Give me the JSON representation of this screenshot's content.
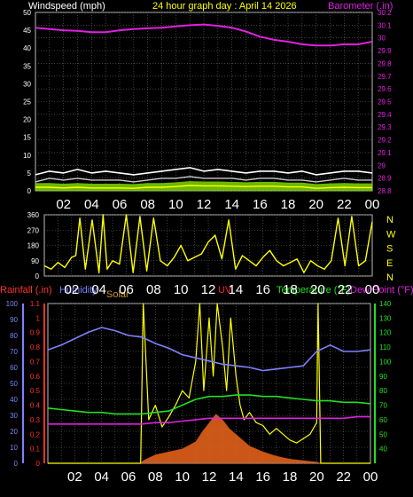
{
  "header": {
    "title": "24 hour graph day : April 14 2026"
  },
  "colors": {
    "background": "#000000",
    "grid": "#6b6b6b",
    "wind_gust": "#ffffff",
    "wind_speed": "#c8c8c8",
    "wind_avg": "#ffff00",
    "wind_fill": "#7fd800",
    "barometer": "#e020e0",
    "direction": "#ffff00",
    "rain": "#ff3030",
    "humidity": "#8080ff",
    "solar": "#c89632",
    "uv": "#ff2020",
    "temperature": "#20e020",
    "dewpoint": "#e020e0",
    "tick_label": "#ffffff"
  },
  "chart_data": [
    {
      "type": "line",
      "title": "24 hour graph day : April 14 2026",
      "xticks": [
        "02",
        "04",
        "06",
        "08",
        "10",
        "12",
        "14",
        "16",
        "18",
        "20",
        "22",
        "00"
      ],
      "xlim": [
        0,
        24
      ],
      "grid": true,
      "left_axis": {
        "label": "Windspeed (mph)",
        "ylim": [
          0,
          50
        ],
        "ticks": [
          "0",
          "5",
          "10",
          "15",
          "20",
          "25",
          "30",
          "35",
          "40",
          "45",
          "50"
        ]
      },
      "right_axis": {
        "label": "Barometer (.in)",
        "ylim": [
          28.8,
          30.2
        ],
        "ticks": [
          "28.8",
          "28.9",
          "29",
          "29.1",
          "29.2",
          "29.3",
          "29.4",
          "29.5",
          "29.6",
          "29.7",
          "29.8",
          "29.9",
          "30",
          "30.1",
          "30.2"
        ]
      },
      "series": [
        {
          "name": "Barometer (.in)",
          "axis": "right",
          "x": [
            0,
            1,
            2,
            3,
            4,
            5,
            6,
            7,
            8,
            9,
            10,
            11,
            12,
            13,
            14,
            15,
            16,
            17,
            18,
            19,
            20,
            21,
            22,
            23,
            24
          ],
          "y": [
            30.08,
            30.07,
            30.06,
            30.055,
            30.045,
            30.045,
            30.06,
            30.07,
            30.075,
            30.08,
            30.09,
            30.1,
            30.105,
            30.095,
            30.08,
            30.05,
            30.01,
            29.985,
            29.97,
            29.95,
            29.94,
            29.94,
            29.95,
            29.95,
            29.97
          ]
        },
        {
          "name": "Wind gust",
          "x": [
            0,
            1,
            2,
            3,
            4,
            5,
            6,
            7,
            8,
            9,
            10,
            11,
            12,
            13,
            14,
            15,
            16,
            17,
            18,
            19,
            20,
            21,
            22,
            23,
            24
          ],
          "y": [
            4.5,
            5.5,
            5,
            6,
            5,
            5.5,
            5,
            4.5,
            5,
            5.5,
            6,
            6.5,
            5.5,
            6,
            5.5,
            5,
            5.5,
            5.5,
            5,
            5.5,
            4.5,
            5,
            5.5,
            5.5,
            5
          ]
        },
        {
          "name": "Wind speed",
          "x": [
            0,
            1,
            2,
            3,
            4,
            5,
            6,
            7,
            8,
            9,
            10,
            11,
            12,
            13,
            14,
            15,
            16,
            17,
            18,
            19,
            20,
            21,
            22,
            23,
            24
          ],
          "y": [
            2.5,
            3.5,
            3,
            3.5,
            3,
            3,
            3,
            2.5,
            3,
            3.5,
            3.5,
            4,
            3.5,
            3.5,
            3.5,
            3,
            3.5,
            3.5,
            3,
            3,
            2.5,
            3,
            3.5,
            3,
            3
          ]
        },
        {
          "name": "Wind average",
          "x": [
            0,
            1,
            2,
            3,
            4,
            5,
            6,
            7,
            8,
            9,
            10,
            11,
            12,
            13,
            14,
            15,
            16,
            17,
            18,
            19,
            20,
            21,
            22,
            23,
            24
          ],
          "y": [
            1,
            1,
            0.8,
            1,
            0.8,
            0.8,
            0.8,
            0.7,
            1,
            1,
            1.2,
            1.5,
            1.4,
            1.4,
            1.3,
            1.2,
            1.3,
            1.3,
            1.1,
            1.1,
            0.7,
            0.9,
            1,
            0.9,
            0.9
          ]
        }
      ]
    },
    {
      "type": "line",
      "xticks": [
        "02",
        "04",
        "06",
        "08",
        "10",
        "12",
        "14",
        "16",
        "18",
        "20",
        "22",
        "00"
      ],
      "xlim": [
        0,
        24
      ],
      "grid": true,
      "left_axis": {
        "ylim": [
          0,
          360
        ],
        "ticks": [
          "0",
          "90",
          "180",
          "270",
          "360"
        ]
      },
      "right_labels": [
        "N",
        "W",
        "S",
        "E",
        "N"
      ],
      "series": [
        {
          "name": "Wind direction",
          "x": [
            0,
            0.5,
            1,
            1.5,
            2,
            2.3,
            2.6,
            3,
            3.5,
            4,
            4.3,
            4.6,
            5,
            5.5,
            6,
            6.5,
            7,
            7.5,
            8,
            8.5,
            9,
            9.5,
            10,
            10.5,
            11,
            11.5,
            12,
            12.5,
            13,
            13.5,
            14,
            14.5,
            15,
            15.5,
            16,
            16.5,
            17,
            17.5,
            18,
            18.5,
            19,
            19.5,
            20,
            20.5,
            21,
            21.5,
            22,
            22.5,
            23,
            23.5,
            24
          ],
          "y": [
            60,
            40,
            80,
            50,
            110,
            120,
            340,
            40,
            330,
            20,
            360,
            40,
            90,
            70,
            360,
            20,
            350,
            30,
            340,
            90,
            60,
            110,
            180,
            90,
            110,
            130,
            200,
            240,
            100,
            330,
            40,
            120,
            90,
            60,
            110,
            150,
            90,
            60,
            80,
            100,
            20,
            90,
            60,
            40,
            90,
            340,
            60,
            350,
            60,
            90,
            320
          ]
        }
      ]
    },
    {
      "type": "line",
      "xticks": [
        "02",
        "04",
        "06",
        "08",
        "10",
        "12",
        "14",
        "16",
        "18",
        "20",
        "22",
        "00"
      ],
      "xlim": [
        0,
        24
      ],
      "grid": true,
      "axes": {
        "rain": {
          "label": "Rainfall (.in)",
          "ylim": [
            0,
            1.1
          ],
          "ticks": [
            "0",
            "0.1",
            "0.2",
            "0.3",
            "0.4",
            "0.5",
            "0.6",
            "0.7",
            "0.8",
            "0.9",
            "1",
            "1.1"
          ]
        },
        "humidity": {
          "label": "Humidity",
          "ylim": [
            0,
            100
          ],
          "ticks": [
            "0",
            "10",
            "20",
            "30",
            "40",
            "50",
            "60",
            "70",
            "80",
            "90",
            "100"
          ]
        },
        "solar": {
          "label": "Solar"
        },
        "uv": {
          "label": "UV"
        },
        "temperature": {
          "label": "Temperature (°F)",
          "ylim": [
            30,
            140
          ],
          "ticks": [
            "40",
            "50",
            "60",
            "70",
            "80",
            "90",
            "100",
            "110",
            "120",
            "130",
            "140"
          ]
        },
        "dewpoint": {
          "label": "Dew Point (°F)"
        }
      },
      "series": [
        {
          "name": "Humidity",
          "axis": "humidity",
          "x": [
            0,
            1,
            2,
            3,
            4,
            5,
            6,
            7,
            8,
            9,
            10,
            11,
            12,
            13,
            14,
            15,
            16,
            17,
            18,
            19,
            20,
            21,
            22,
            23,
            24
          ],
          "y": [
            71,
            74,
            78,
            82,
            85,
            83,
            80,
            79,
            75,
            72,
            68,
            66,
            64,
            62,
            61,
            60,
            58,
            59,
            60,
            61,
            70,
            74,
            70,
            70,
            71
          ]
        },
        {
          "name": "Temperature (°F)",
          "axis": "temperature",
          "x": [
            0,
            1,
            2,
            3,
            4,
            5,
            6,
            7,
            8,
            9,
            10,
            11,
            12,
            13,
            14,
            15,
            16,
            17,
            18,
            19,
            20,
            21,
            22,
            23,
            24
          ],
          "y": [
            68,
            67,
            66,
            65,
            65,
            64,
            64,
            64,
            65,
            66,
            70,
            74,
            76,
            76,
            77,
            77,
            76,
            76,
            75,
            74,
            73,
            73,
            72,
            72,
            71
          ]
        },
        {
          "name": "Dew Point (°F)",
          "axis": "temperature",
          "x": [
            0,
            1,
            2,
            3,
            4,
            5,
            6,
            7,
            8,
            9,
            10,
            11,
            12,
            13,
            14,
            15,
            16,
            17,
            18,
            19,
            20,
            21,
            22,
            23,
            24
          ],
          "y": [
            57,
            57,
            57,
            57,
            57,
            57,
            57,
            57,
            58,
            58,
            59,
            60,
            61,
            61,
            61,
            61,
            61,
            61,
            61,
            61,
            61,
            61,
            61,
            62,
            62
          ]
        },
        {
          "name": "Solar",
          "axis": "rain",
          "x": [
            0,
            6.9,
            7.1,
            8,
            9,
            10,
            11,
            11.5,
            12,
            12.5,
            13,
            13.5,
            14,
            14.5,
            15,
            16,
            17,
            18,
            19,
            20,
            20.3,
            24
          ],
          "y": [
            0,
            0,
            0.02,
            0.06,
            0.08,
            0.1,
            0.15,
            0.22,
            0.28,
            0.34,
            0.3,
            0.24,
            0.2,
            0.16,
            0.12,
            0.08,
            0.05,
            0.03,
            0.02,
            0.01,
            0,
            0
          ]
        },
        {
          "name": "UV",
          "axis": "rain",
          "x": [
            0,
            6.9,
            7.1,
            7.5,
            8,
            8.5,
            9,
            9.5,
            10,
            10.5,
            11,
            11.3,
            11.6,
            12,
            12.3,
            12.6,
            13,
            13.3,
            13.6,
            14,
            14.3,
            14.6,
            15,
            15.5,
            16,
            16.5,
            17,
            17.5,
            18,
            18.5,
            19,
            19.5,
            20,
            20.1,
            20.3,
            24
          ],
          "y": [
            0,
            0,
            1.1,
            0.3,
            0.4,
            0.25,
            0.32,
            0.4,
            0.5,
            0.45,
            0.7,
            1.1,
            0.5,
            1.0,
            0.6,
            1.1,
            0.8,
            0.5,
            1.0,
            0.6,
            0.4,
            0.3,
            0.35,
            0.28,
            0.26,
            0.2,
            0.24,
            0.2,
            0.16,
            0.14,
            0.17,
            0.2,
            0.28,
            1.1,
            0,
            0
          ]
        }
      ]
    }
  ]
}
